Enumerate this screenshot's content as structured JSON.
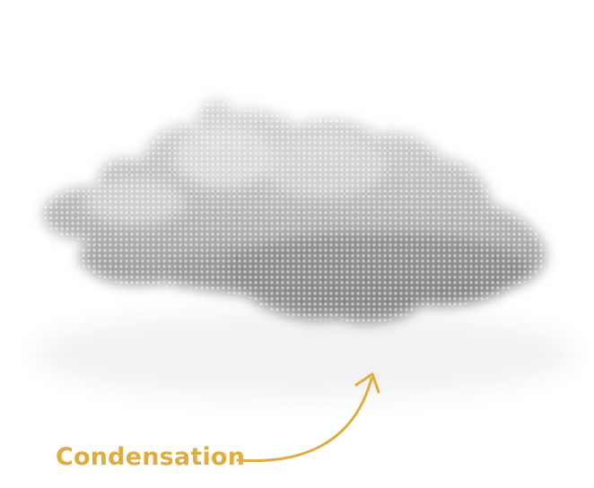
{
  "diagram": {
    "label": "Condensation",
    "cloud_icon": "cloud-icon",
    "arrow_icon": "curved-arrow-icon",
    "colors": {
      "accent": "#e0ac3e",
      "cloud_light": "#d4d4d4",
      "cloud_dark": "#8a8a8a"
    }
  }
}
